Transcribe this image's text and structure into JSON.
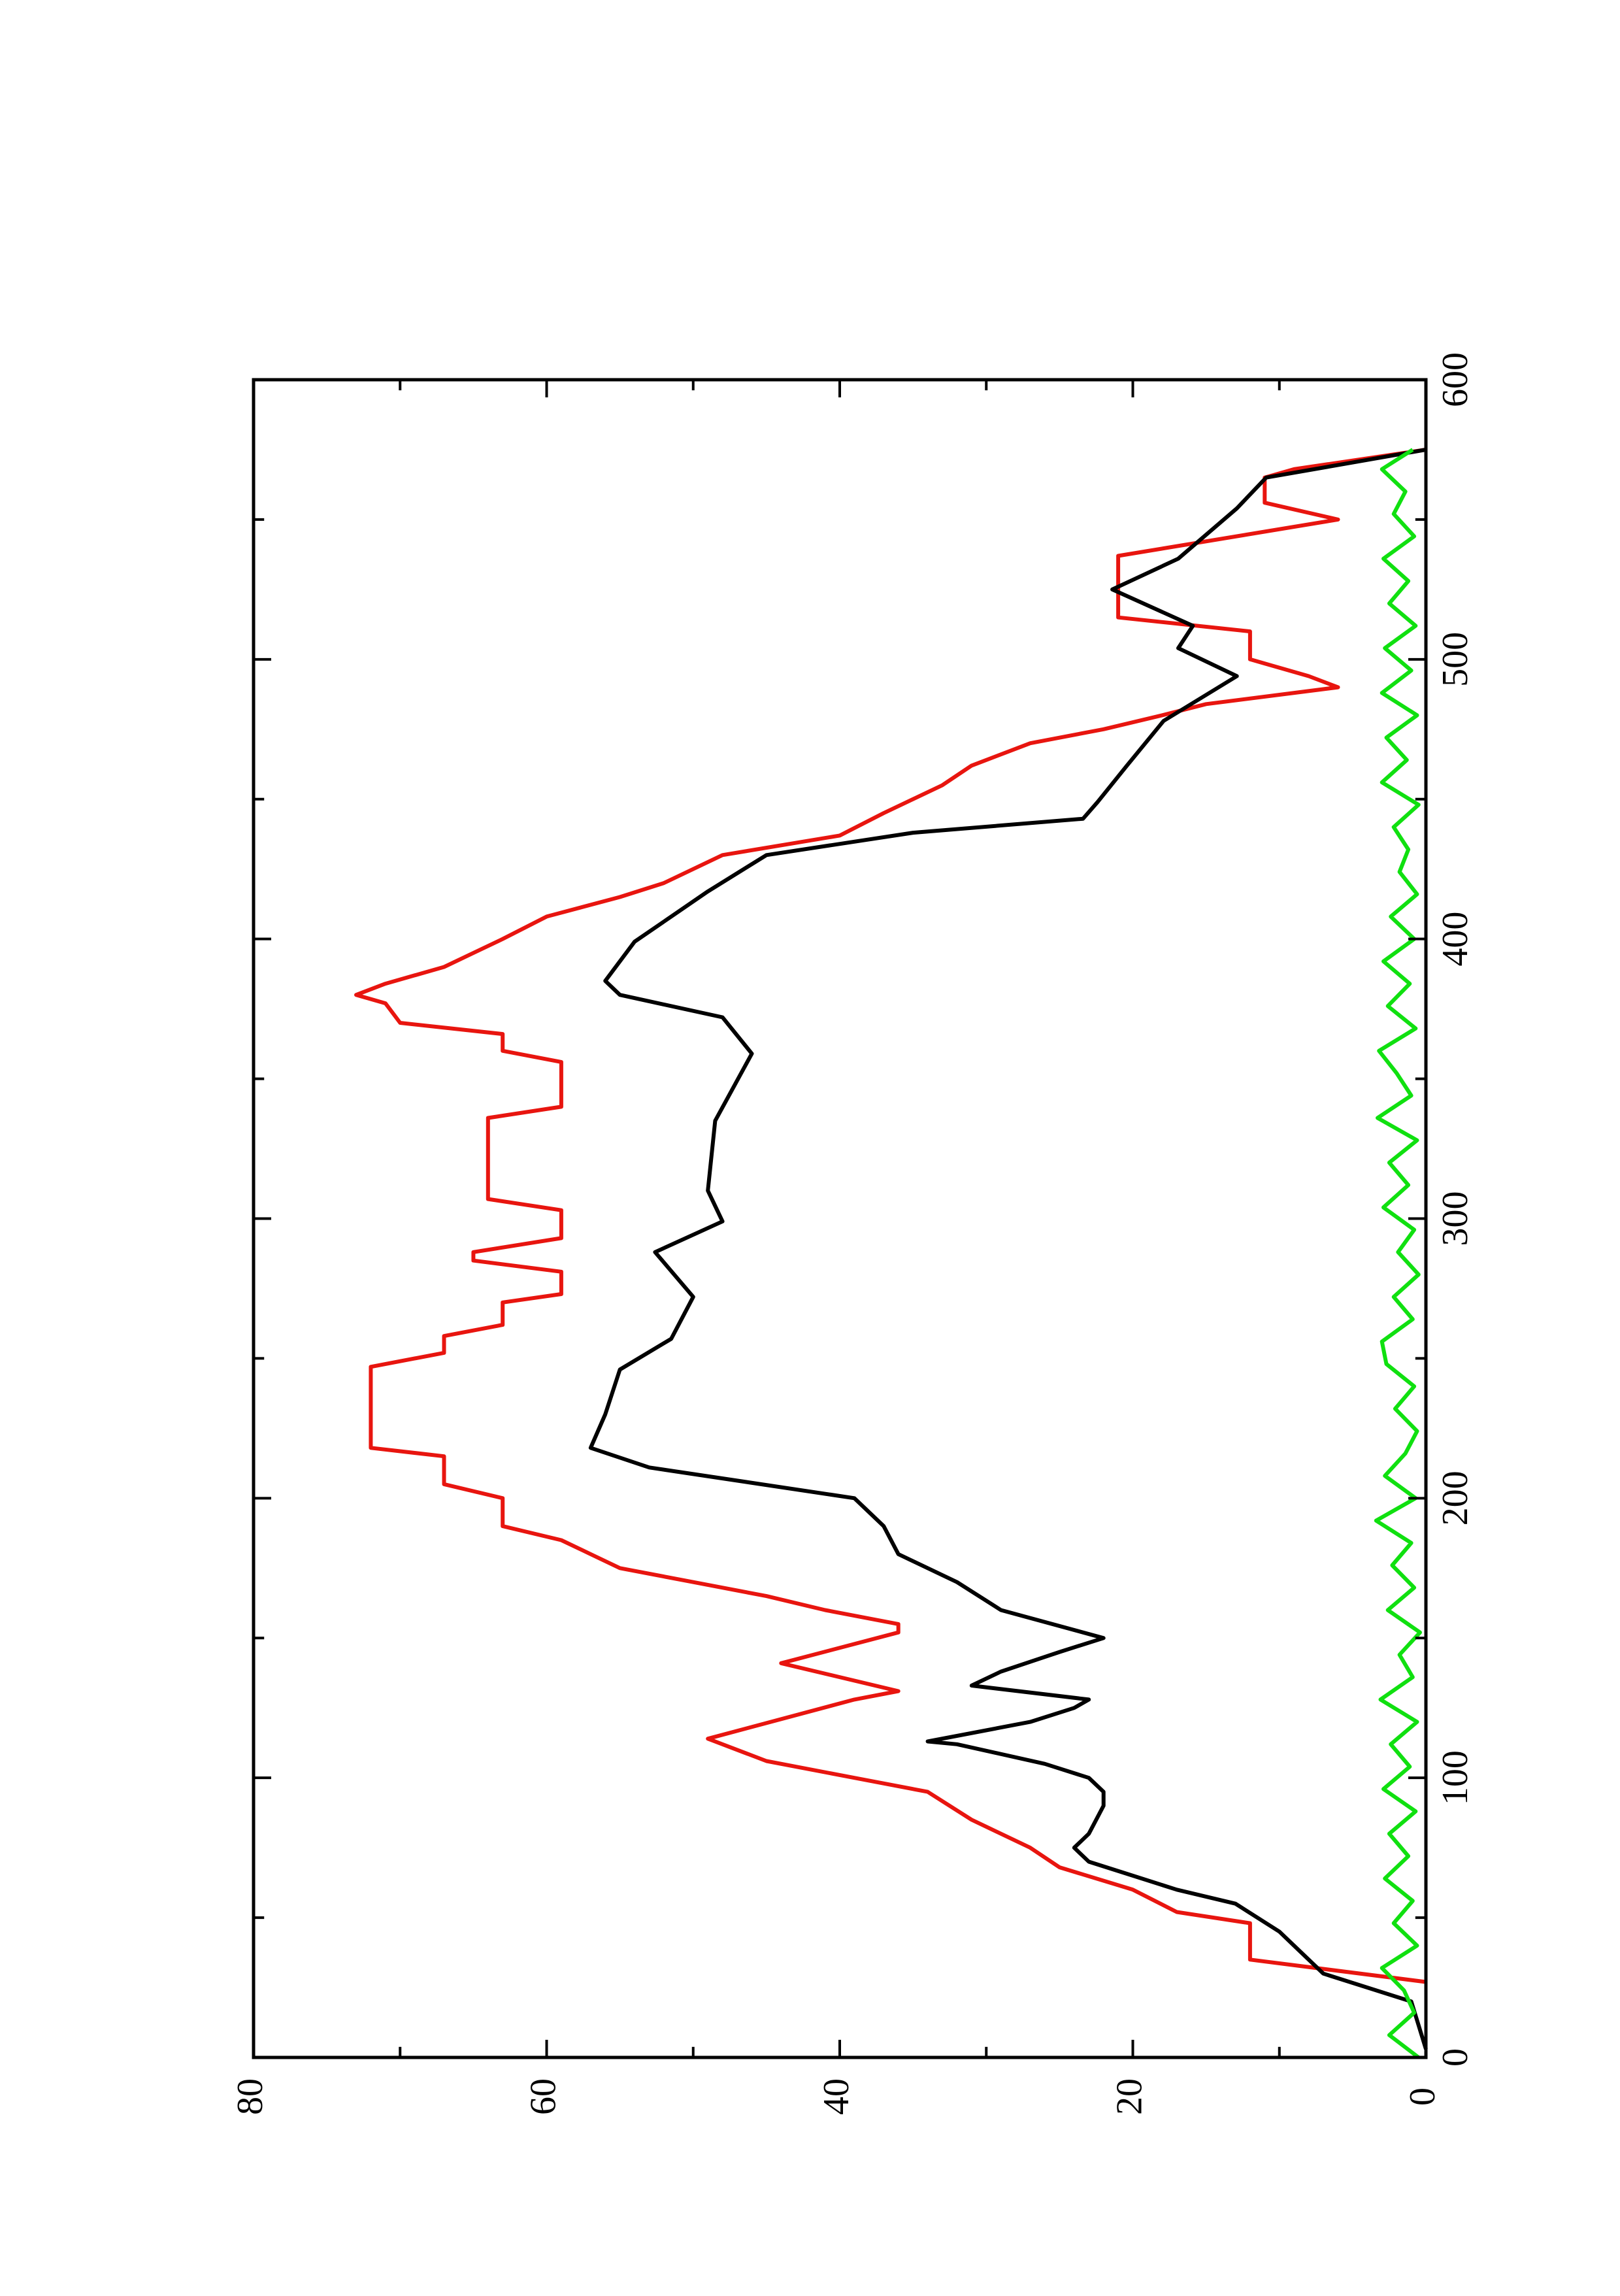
{
  "chart_data": {
    "type": "line",
    "rotated": true,
    "xlim": [
      0,
      600
    ],
    "xticks": [
      0,
      100,
      200,
      300,
      400,
      500,
      600
    ],
    "xminor": [
      50,
      150,
      250,
      350,
      450,
      550
    ],
    "ylim": [
      0,
      80
    ],
    "yticks": [
      0,
      20,
      40,
      60,
      80
    ],
    "yminor": [
      10,
      30,
      50,
      70
    ],
    "series": [
      {
        "color": "#e8150f",
        "x": [
          27,
          35,
          48,
          52,
          60,
          68,
          75,
          85,
          95,
          100,
          106,
          114,
          128,
          131,
          141,
          152,
          155,
          160,
          165,
          170,
          175,
          180,
          185,
          190,
          200,
          205,
          215,
          218,
          247,
          252,
          258,
          262,
          270,
          273,
          281,
          285,
          288,
          293,
          303,
          307,
          336,
          340,
          356,
          360,
          366,
          370,
          377,
          380,
          384,
          390,
          395,
          400,
          408,
          415,
          420,
          430,
          437,
          445,
          455,
          462,
          470,
          475,
          480,
          484,
          490,
          494,
          500,
          510,
          515,
          537,
          550,
          556,
          565,
          568,
          575
        ],
        "values": [
          0,
          12,
          12,
          17,
          20,
          25,
          27,
          31,
          34,
          39,
          45,
          49,
          39,
          36,
          44,
          36,
          36,
          41,
          45,
          50,
          55,
          57,
          59,
          63,
          63,
          67,
          67,
          72,
          72,
          67,
          67,
          63,
          63,
          59,
          59,
          65,
          65,
          59,
          59,
          64,
          64,
          59,
          59,
          63,
          63,
          70,
          71,
          73,
          71,
          67,
          65,
          63,
          60,
          55,
          52,
          48,
          40,
          37,
          33,
          31,
          27,
          22,
          18,
          15,
          6,
          8,
          12,
          12,
          21,
          21,
          6,
          11,
          11,
          9,
          0
        ]
      },
      {
        "color": "#000000",
        "x": [
          3,
          20,
          30,
          40,
          45,
          55,
          60,
          65,
          70,
          75,
          80,
          90,
          95,
          100,
          105,
          112,
          113,
          120,
          125,
          128,
          133,
          138,
          145,
          150,
          160,
          170,
          180,
          190,
          200,
          211,
          218,
          230,
          246,
          257,
          272,
          288,
          299,
          310,
          335,
          359,
          372,
          380,
          385,
          399,
          417,
          430,
          438,
          443,
          449,
          462,
          478,
          494,
          504,
          512,
          525,
          536,
          554,
          565,
          575
        ],
        "values": [
          0,
          1,
          7,
          9,
          10,
          13,
          17,
          20,
          23,
          24,
          23,
          22,
          22,
          23,
          26,
          32,
          34,
          27,
          24,
          23,
          31,
          29,
          25,
          22,
          29,
          32,
          36,
          37,
          39,
          53,
          57,
          56,
          55,
          51.5,
          50,
          52.6,
          48,
          49,
          48.5,
          46,
          48,
          55,
          56,
          54,
          49,
          45,
          35,
          23.4,
          22.4,
          20.4,
          17.9,
          12.9,
          16.9,
          15.9,
          21.4,
          16.9,
          12.9,
          10.9,
          0
        ]
      },
      {
        "color": "#10e010",
        "x": [
          0,
          8,
          16,
          24,
          32,
          40,
          48,
          56,
          64,
          72,
          80,
          88,
          96,
          104,
          112,
          120,
          128,
          136,
          144,
          152,
          160,
          168,
          176,
          184,
          192,
          200,
          208,
          216,
          224,
          232,
          240,
          248,
          256,
          264,
          272,
          280,
          288,
          296,
          304,
          312,
          320,
          328,
          336,
          344,
          352,
          360,
          368,
          376,
          384,
          392,
          400,
          408,
          416,
          424,
          432,
          440,
          448,
          456,
          464,
          472,
          480,
          488,
          496,
          504,
          512,
          520,
          528,
          536,
          544,
          552,
          560,
          568,
          575
        ],
        "values": [
          0.5,
          2.5,
          0.8,
          1.5,
          3,
          0.6,
          2.2,
          0.9,
          2.8,
          1.2,
          2.5,
          0.7,
          2.9,
          1.1,
          2.4,
          0.6,
          3.1,
          0.9,
          1.8,
          0.4,
          2.6,
          0.8,
          2.3,
          1.0,
          3.4,
          0.7,
          2.8,
          1.4,
          0.6,
          2.1,
          0.8,
          2.7,
          3.0,
          0.9,
          2.2,
          0.5,
          1.9,
          0.8,
          2.9,
          1.2,
          2.5,
          0.6,
          3.3,
          1.0,
          2.0,
          3.2,
          0.7,
          2.6,
          1.1,
          2.9,
          0.8,
          2.4,
          0.6,
          1.8,
          1.2,
          2.2,
          0.5,
          3.0,
          1.3,
          2.7,
          0.6,
          3.0,
          1.0,
          2.8,
          0.7,
          2.5,
          1.2,
          2.9,
          0.8,
          2.2,
          1.4,
          3.0,
          0.9
        ]
      }
    ]
  }
}
